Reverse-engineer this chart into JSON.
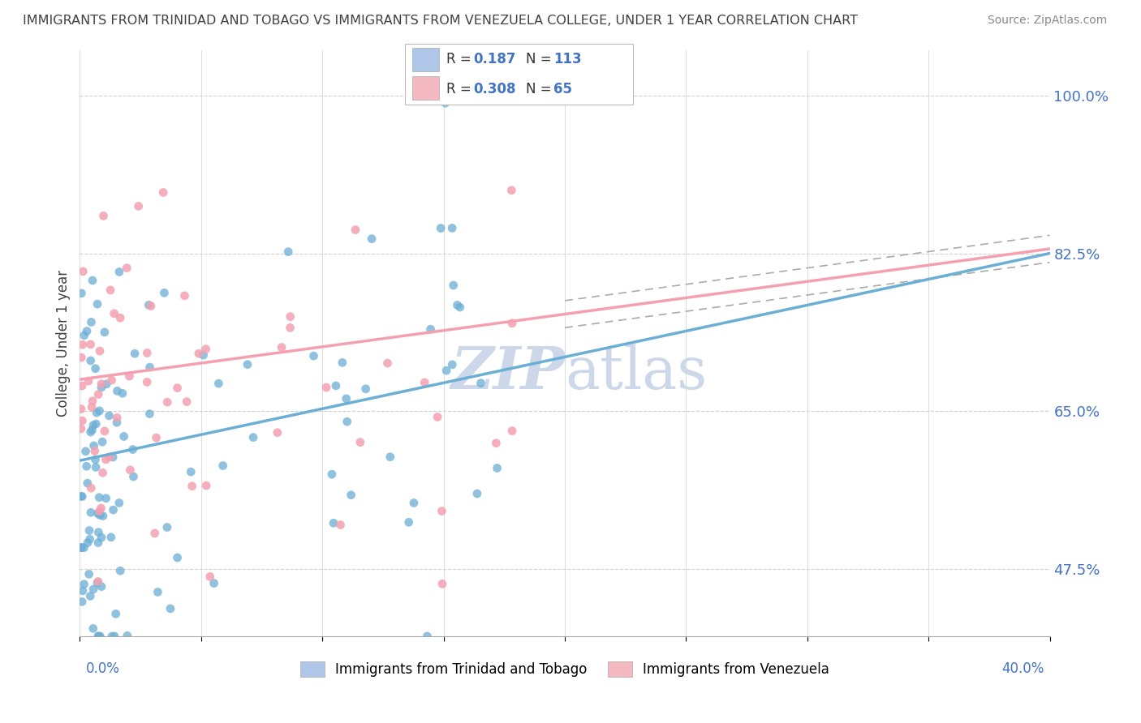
{
  "title": "IMMIGRANTS FROM TRINIDAD AND TOBAGO VS IMMIGRANTS FROM VENEZUELA COLLEGE, UNDER 1 YEAR CORRELATION CHART",
  "source": "Source: ZipAtlas.com",
  "ylabel": "College, Under 1 year",
  "series1_name": "Immigrants from Trinidad and Tobago",
  "series1_color": "#6baed6",
  "series1_R": 0.187,
  "series1_N": 113,
  "series2_name": "Immigrants from Venezuela",
  "series2_color": "#f4a0b0",
  "series2_R": 0.308,
  "series2_N": 65,
  "trend1_x0": 0.0,
  "trend1_y0": 59.5,
  "trend1_x1": 40.0,
  "trend1_y1": 82.5,
  "trend2_x0": 0.0,
  "trend2_y0": 68.5,
  "trend2_x1": 40.0,
  "trend2_y1": 83.0,
  "xlim": [
    0.0,
    40.0
  ],
  "ylim": [
    40.0,
    105.0
  ],
  "yticks": [
    47.5,
    65.0,
    82.5,
    100.0
  ],
  "background_color": "#ffffff",
  "grid_color": "#d0d0d0",
  "legend_box_color1": "#aec6e8",
  "legend_box_color2": "#f4b8c1",
  "legend_text_color": "#4472c4",
  "axis_label_color": "#4472c4",
  "title_color": "#404040",
  "watermark_color": "#ccd8ea"
}
